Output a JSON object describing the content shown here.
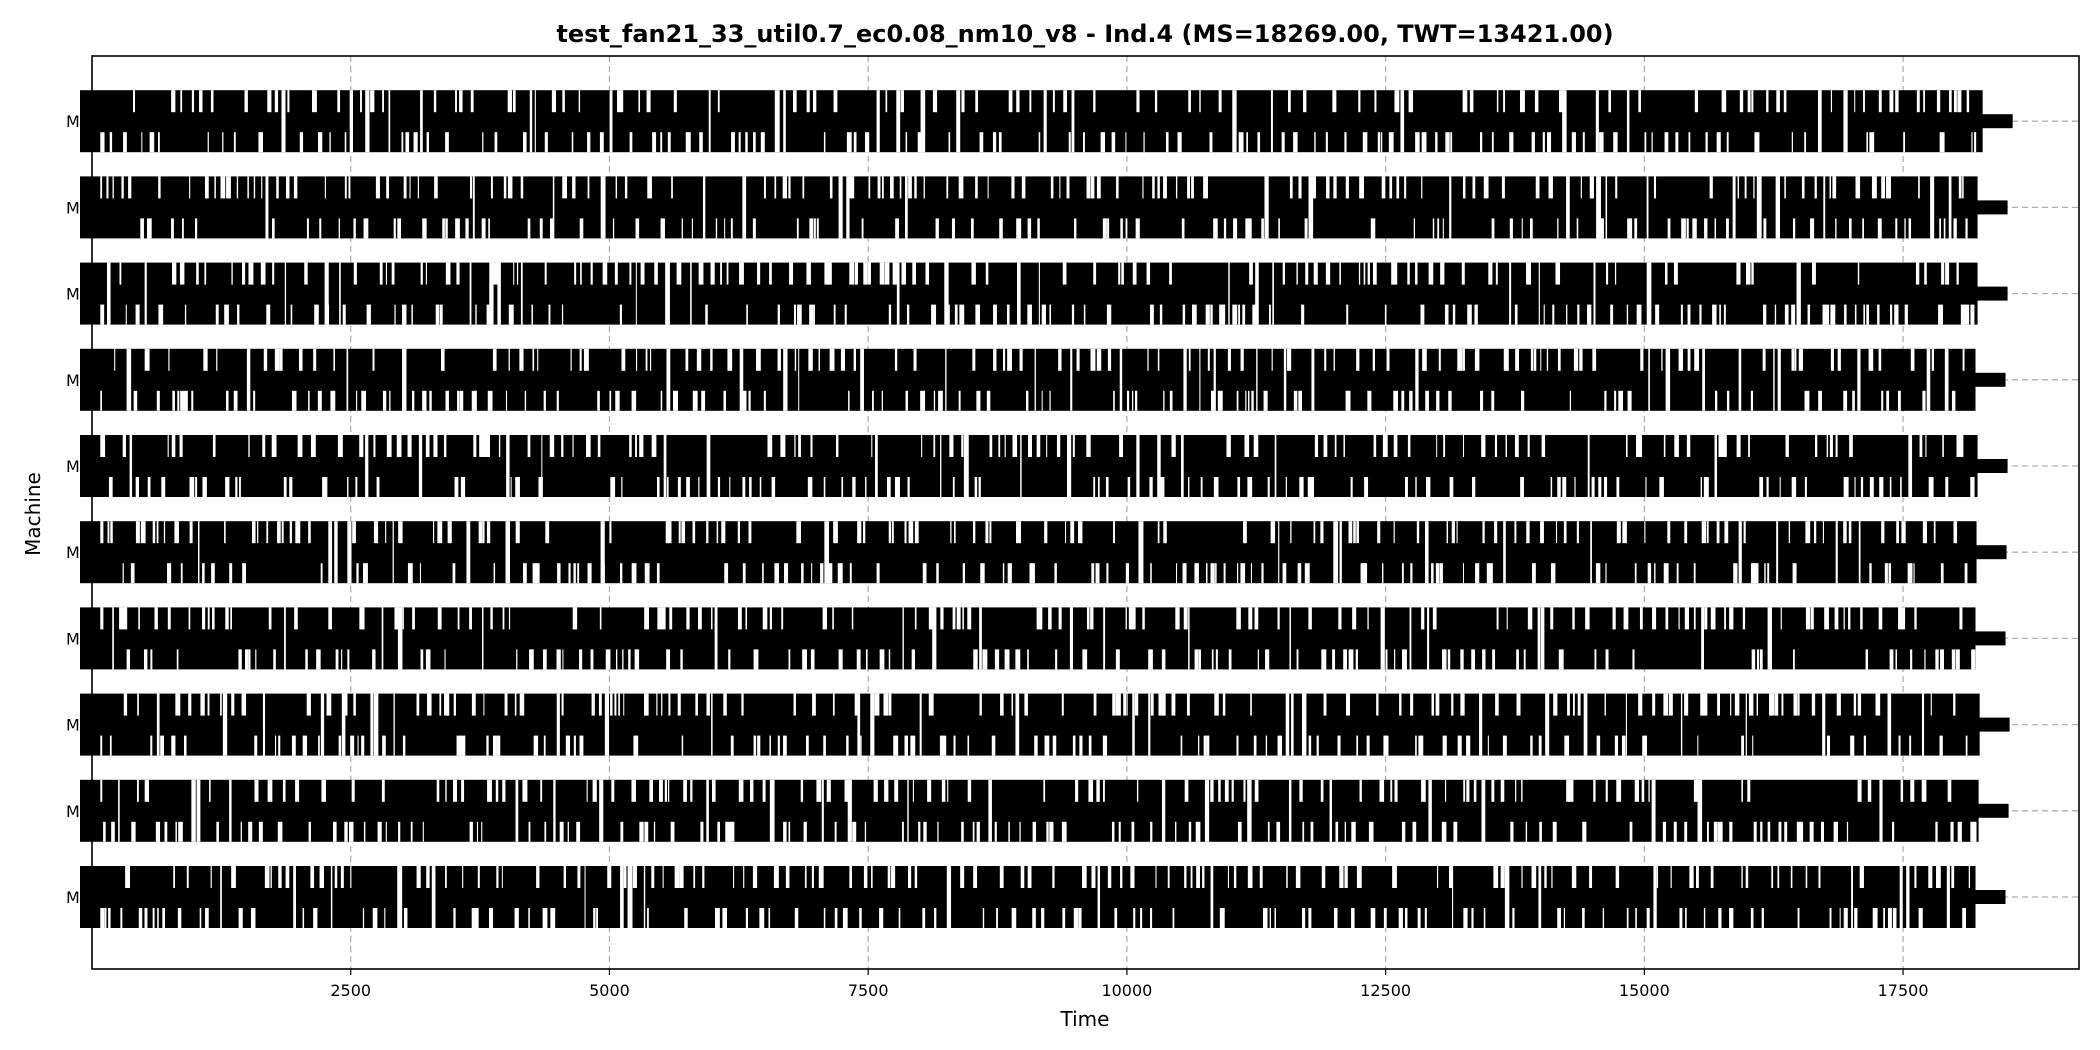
{
  "chart_data": {
    "type": "gantt",
    "title": "test_fan21_33_util0.7_ec0.08_nm10_v8 - Ind.4 (MS=18269.00, TWT=13421.00)",
    "xlabel": "Time",
    "ylabel": "Machine",
    "xlim": [
      0,
      19200
    ],
    "xticks": [
      2500,
      5000,
      7500,
      10000,
      12500,
      15000,
      17500
    ],
    "xtick_labels": [
      "2500",
      "5000",
      "7500",
      "10000",
      "12500",
      "15000",
      "17500"
    ],
    "machines": [
      "M0",
      "M1",
      "M2",
      "M3",
      "M4",
      "M5",
      "M6",
      "M7",
      "M8",
      "M9"
    ],
    "machine_end_times": [
      18200,
      18230,
      18240,
      18200,
      18210,
      18220,
      18200,
      18220,
      18220,
      18269
    ],
    "makespan": 18269,
    "grid": true,
    "bar_color": "#000000",
    "grid_color": "#b0b0b0"
  }
}
